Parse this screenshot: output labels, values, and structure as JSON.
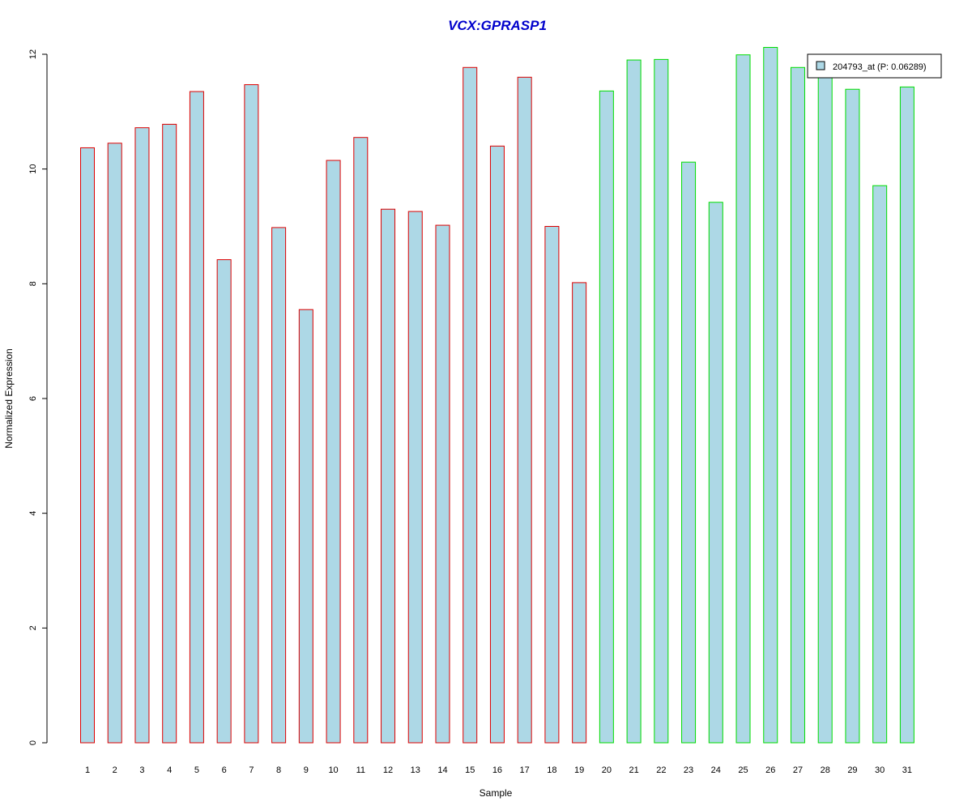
{
  "chart_data": {
    "type": "bar",
    "title": "VCX:GPRASP1",
    "xlabel": "Sample",
    "ylabel": "Normalized Expression",
    "categories": [
      "1",
      "2",
      "3",
      "4",
      "5",
      "6",
      "7",
      "8",
      "9",
      "10",
      "11",
      "12",
      "13",
      "14",
      "15",
      "16",
      "17",
      "18",
      "19",
      "20",
      "21",
      "22",
      "23",
      "24",
      "25",
      "26",
      "27",
      "28",
      "29",
      "30",
      "31"
    ],
    "series": [
      {
        "name": "204793_at (P: 0.06289)",
        "values": [
          10.37,
          10.45,
          10.72,
          10.78,
          11.35,
          8.42,
          11.47,
          8.98,
          7.55,
          10.15,
          10.55,
          9.3,
          9.26,
          9.02,
          11.77,
          10.4,
          11.6,
          9.0,
          8.02,
          11.36,
          11.9,
          11.91,
          10.12,
          9.42,
          11.99,
          12.12,
          11.77,
          11.62,
          11.39,
          9.71,
          11.43
        ]
      }
    ],
    "groups": [
      {
        "from": 1,
        "to": 19,
        "border_color": "#dd0000"
      },
      {
        "from": 20,
        "to": 31,
        "border_color": "#00dd00"
      }
    ],
    "fill_color": "#add8e6",
    "title_color": "#0000cc",
    "ylim": [
      0,
      12
    ],
    "y_ticks": [
      0,
      2,
      4,
      6,
      8,
      10,
      12
    ],
    "grid": false,
    "legend_position": "top-right"
  }
}
